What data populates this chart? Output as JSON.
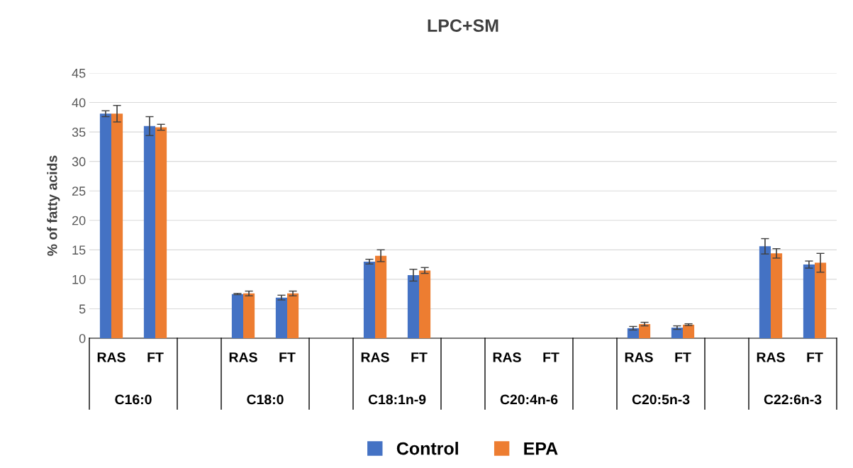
{
  "chart_data": {
    "type": "bar",
    "title": "LPC+SM",
    "ylabel": "% of fatty acids",
    "categories": [
      "RAS",
      "FT",
      null,
      "RAS",
      "FT",
      null,
      "RAS",
      "FT",
      null,
      "RAS",
      "FT",
      null,
      "RAS",
      "FT",
      null,
      "RAS",
      "FT"
    ],
    "annotations": [
      "C16:0",
      "C18:0",
      "C18:1n-9",
      "C20:4n-6",
      "C20:5n-3",
      "C22:6n-3"
    ],
    "series": [
      {
        "name": "Control",
        "color": "#4472c4",
        "values": [
          38.1,
          36.0,
          null,
          7.5,
          6.9,
          null,
          13.0,
          10.7,
          null,
          0,
          0,
          null,
          1.7,
          1.8,
          null,
          15.6,
          12.5
        ],
        "errors": [
          0.5,
          1.6,
          null,
          0.1,
          0.4,
          null,
          0.4,
          1.0,
          null,
          null,
          null,
          null,
          0.3,
          0.3,
          null,
          1.3,
          0.6
        ]
      },
      {
        "name": "EPA",
        "color": "#ed7d31",
        "values": [
          38.1,
          35.8,
          null,
          7.6,
          7.6,
          null,
          14.0,
          11.5,
          null,
          0,
          0,
          null,
          2.4,
          2.3,
          null,
          14.4,
          12.8
        ],
        "errors": [
          1.4,
          0.5,
          null,
          0.4,
          0.4,
          null,
          1.0,
          0.5,
          null,
          null,
          null,
          null,
          0.3,
          0.15,
          null,
          0.8,
          1.6
        ]
      }
    ],
    "ylim": [
      0,
      45
    ],
    "yticks": [
      0,
      5,
      10,
      15,
      20,
      25,
      30,
      35,
      40,
      45
    ],
    "grid": "y",
    "legend": "bottom"
  }
}
